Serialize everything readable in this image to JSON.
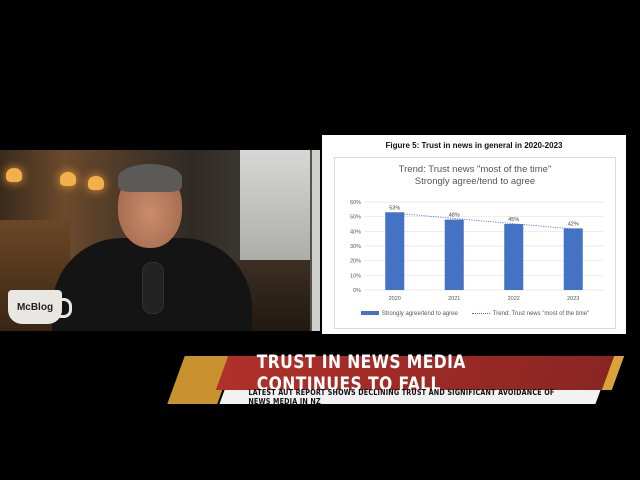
{
  "video": {
    "mug_text": "McBlog"
  },
  "chart_panel": {
    "figure_title": "Figure 5: Trust in news in general in 2020-2023",
    "trend_title_line1": "Trend: Trust news \"most of the time\"",
    "trend_title_line2": "Strongly agree/tend to agree"
  },
  "chart_data": {
    "type": "bar",
    "categories": [
      "2020",
      "2021",
      "2022",
      "2023"
    ],
    "series": [
      {
        "name": "Strongly agree/tend to agree",
        "values": [
          53,
          48,
          45,
          42
        ]
      }
    ],
    "trendline": {
      "name": "Trend: Trust news \"most of the time\"",
      "style": "dotted"
    },
    "data_labels": [
      "53%",
      "48%",
      "45%",
      "42%"
    ],
    "y_ticks": [
      "0%",
      "10%",
      "20%",
      "30%",
      "40%",
      "50%",
      "60%"
    ],
    "ylim": [
      0,
      60
    ],
    "grid": true,
    "legend_position": "bottom",
    "bar_color": "#4472c4"
  },
  "banner": {
    "title": "TRUST IN NEWS MEDIA CONTINUES TO FALL",
    "subtitle": "LATEST AUT REPORT SHOWS DECLINING TRUST AND SIGNIFICANT AVOIDANCE OF NEWS MEDIA IN NZ",
    "primary_color": "#b0302a",
    "accent_color": "#d9a23a"
  }
}
